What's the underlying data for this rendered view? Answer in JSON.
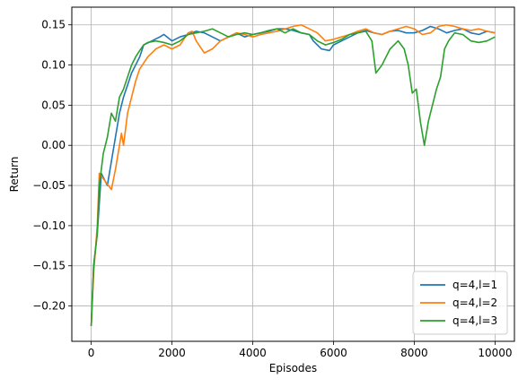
{
  "chart_data": {
    "type": "line",
    "xlabel": "Episodes",
    "ylabel": "Return",
    "xlim": [
      -480,
      10480
    ],
    "ylim": [
      -0.244,
      0.172
    ],
    "x_ticks": [
      0,
      2000,
      4000,
      6000,
      8000,
      10000
    ],
    "y_ticks": [
      -0.2,
      -0.15,
      -0.1,
      -0.05,
      0.0,
      0.05,
      0.1,
      0.15
    ],
    "grid": true,
    "legend_position": "lower-right",
    "series": [
      {
        "name": "q=4,l=1",
        "color": "#1f77b4",
        "points": [
          [
            0,
            -0.225
          ],
          [
            60,
            -0.15
          ],
          [
            150,
            -0.11
          ],
          [
            250,
            -0.035
          ],
          [
            400,
            -0.05
          ],
          [
            500,
            -0.02
          ],
          [
            600,
            0.01
          ],
          [
            700,
            0.04
          ],
          [
            800,
            0.06
          ],
          [
            900,
            0.075
          ],
          [
            1000,
            0.09
          ],
          [
            1100,
            0.1
          ],
          [
            1200,
            0.11
          ],
          [
            1300,
            0.125
          ],
          [
            1500,
            0.13
          ],
          [
            1700,
            0.135
          ],
          [
            1800,
            0.138
          ],
          [
            2000,
            0.13
          ],
          [
            2200,
            0.135
          ],
          [
            2400,
            0.138
          ],
          [
            2600,
            0.142
          ],
          [
            2800,
            0.14
          ],
          [
            3000,
            0.135
          ],
          [
            3200,
            0.13
          ],
          [
            3400,
            0.135
          ],
          [
            3600,
            0.14
          ],
          [
            3800,
            0.135
          ],
          [
            4000,
            0.138
          ],
          [
            4200,
            0.14
          ],
          [
            4400,
            0.142
          ],
          [
            4600,
            0.145
          ],
          [
            4800,
            0.145
          ],
          [
            5000,
            0.143
          ],
          [
            5200,
            0.14
          ],
          [
            5400,
            0.138
          ],
          [
            5500,
            0.13
          ],
          [
            5700,
            0.12
          ],
          [
            5900,
            0.118
          ],
          [
            6000,
            0.125
          ],
          [
            6200,
            0.13
          ],
          [
            6400,
            0.135
          ],
          [
            6600,
            0.14
          ],
          [
            6800,
            0.143
          ],
          [
            7000,
            0.14
          ],
          [
            7200,
            0.138
          ],
          [
            7400,
            0.142
          ],
          [
            7600,
            0.143
          ],
          [
            7800,
            0.14
          ],
          [
            8000,
            0.14
          ],
          [
            8200,
            0.143
          ],
          [
            8400,
            0.148
          ],
          [
            8600,
            0.145
          ],
          [
            8800,
            0.14
          ],
          [
            9000,
            0.143
          ],
          [
            9200,
            0.145
          ],
          [
            9400,
            0.14
          ],
          [
            9600,
            0.138
          ],
          [
            9800,
            0.142
          ],
          [
            10000,
            0.14
          ]
        ]
      },
      {
        "name": "q=4,l=2",
        "color": "#ff7f0e",
        "points": [
          [
            0,
            -0.225
          ],
          [
            60,
            -0.16
          ],
          [
            150,
            -0.1
          ],
          [
            200,
            -0.035
          ],
          [
            350,
            -0.045
          ],
          [
            500,
            -0.055
          ],
          [
            600,
            -0.03
          ],
          [
            700,
            0.0
          ],
          [
            750,
            0.015
          ],
          [
            800,
            0.0
          ],
          [
            900,
            0.04
          ],
          [
            1000,
            0.06
          ],
          [
            1100,
            0.08
          ],
          [
            1200,
            0.095
          ],
          [
            1400,
            0.11
          ],
          [
            1600,
            0.12
          ],
          [
            1800,
            0.125
          ],
          [
            2000,
            0.12
          ],
          [
            2200,
            0.125
          ],
          [
            2400,
            0.14
          ],
          [
            2500,
            0.142
          ],
          [
            2600,
            0.13
          ],
          [
            2800,
            0.115
          ],
          [
            3000,
            0.12
          ],
          [
            3200,
            0.13
          ],
          [
            3400,
            0.135
          ],
          [
            3600,
            0.14
          ],
          [
            3800,
            0.138
          ],
          [
            4000,
            0.135
          ],
          [
            4200,
            0.138
          ],
          [
            4400,
            0.14
          ],
          [
            4600,
            0.142
          ],
          [
            4800,
            0.145
          ],
          [
            5000,
            0.148
          ],
          [
            5200,
            0.15
          ],
          [
            5400,
            0.145
          ],
          [
            5600,
            0.14
          ],
          [
            5800,
            0.13
          ],
          [
            6000,
            0.132
          ],
          [
            6200,
            0.135
          ],
          [
            6400,
            0.138
          ],
          [
            6600,
            0.142
          ],
          [
            6800,
            0.145
          ],
          [
            7000,
            0.14
          ],
          [
            7200,
            0.138
          ],
          [
            7400,
            0.142
          ],
          [
            7600,
            0.145
          ],
          [
            7800,
            0.148
          ],
          [
            8000,
            0.145
          ],
          [
            8200,
            0.138
          ],
          [
            8400,
            0.14
          ],
          [
            8600,
            0.148
          ],
          [
            8800,
            0.15
          ],
          [
            9000,
            0.148
          ],
          [
            9200,
            0.145
          ],
          [
            9400,
            0.143
          ],
          [
            9600,
            0.145
          ],
          [
            9800,
            0.142
          ],
          [
            10000,
            0.14
          ]
        ]
      },
      {
        "name": "q=4,l=3",
        "color": "#2ca02c",
        "points": [
          [
            0,
            -0.225
          ],
          [
            60,
            -0.15
          ],
          [
            150,
            -0.11
          ],
          [
            200,
            -0.05
          ],
          [
            300,
            -0.01
          ],
          [
            400,
            0.01
          ],
          [
            500,
            0.04
          ],
          [
            600,
            0.03
          ],
          [
            700,
            0.06
          ],
          [
            800,
            0.07
          ],
          [
            900,
            0.085
          ],
          [
            1000,
            0.1
          ],
          [
            1100,
            0.11
          ],
          [
            1200,
            0.118
          ],
          [
            1300,
            0.125
          ],
          [
            1400,
            0.128
          ],
          [
            1600,
            0.13
          ],
          [
            1800,
            0.128
          ],
          [
            2000,
            0.125
          ],
          [
            2200,
            0.13
          ],
          [
            2400,
            0.138
          ],
          [
            2600,
            0.14
          ],
          [
            2800,
            0.142
          ],
          [
            3000,
            0.145
          ],
          [
            3200,
            0.14
          ],
          [
            3400,
            0.135
          ],
          [
            3600,
            0.138
          ],
          [
            3800,
            0.14
          ],
          [
            4000,
            0.138
          ],
          [
            4200,
            0.14
          ],
          [
            4400,
            0.143
          ],
          [
            4600,
            0.145
          ],
          [
            4800,
            0.14
          ],
          [
            5000,
            0.145
          ],
          [
            5200,
            0.14
          ],
          [
            5400,
            0.138
          ],
          [
            5600,
            0.13
          ],
          [
            5800,
            0.125
          ],
          [
            6000,
            0.128
          ],
          [
            6200,
            0.132
          ],
          [
            6400,
            0.138
          ],
          [
            6600,
            0.14
          ],
          [
            6800,
            0.142
          ],
          [
            6950,
            0.13
          ],
          [
            7050,
            0.09
          ],
          [
            7200,
            0.1
          ],
          [
            7400,
            0.12
          ],
          [
            7600,
            0.13
          ],
          [
            7750,
            0.12
          ],
          [
            7850,
            0.1
          ],
          [
            7950,
            0.065
          ],
          [
            8050,
            0.07
          ],
          [
            8150,
            0.03
          ],
          [
            8250,
            0.0
          ],
          [
            8350,
            0.03
          ],
          [
            8450,
            0.05
          ],
          [
            8550,
            0.07
          ],
          [
            8650,
            0.085
          ],
          [
            8750,
            0.12
          ],
          [
            8850,
            0.13
          ],
          [
            9000,
            0.14
          ],
          [
            9200,
            0.138
          ],
          [
            9400,
            0.13
          ],
          [
            9600,
            0.128
          ],
          [
            9800,
            0.13
          ],
          [
            10000,
            0.135
          ]
        ]
      }
    ]
  }
}
